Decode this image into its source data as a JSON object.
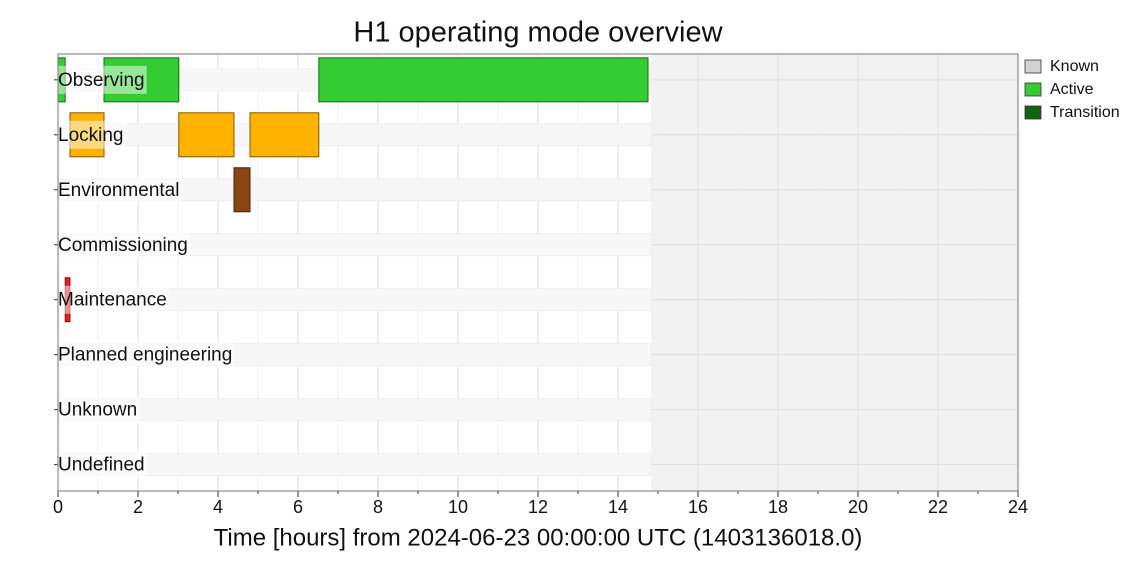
{
  "chart_data": {
    "type": "timeline",
    "title": "H1 operating mode overview",
    "xlabel": "Time [hours] from 2024-06-23 00:00:00 UTC (1403136018.0)",
    "xlim": [
      0,
      24
    ],
    "xticks": [
      0,
      2,
      4,
      6,
      8,
      10,
      12,
      14,
      16,
      18,
      20,
      22,
      24
    ],
    "grid": true,
    "known": [
      0,
      14.83
    ],
    "legend_position": "outside-upper-right",
    "legend": [
      {
        "name": "Known",
        "color": "#d3d3d3"
      },
      {
        "name": "Active",
        "color": "#33cc33"
      },
      {
        "name": "Transition",
        "color": "#116611"
      }
    ],
    "series": [
      {
        "name": "Observing",
        "color": "#33cc33",
        "edge": "#1a661a",
        "segments": [
          [
            0,
            0.18
          ],
          [
            1.15,
            3.02
          ],
          [
            6.52,
            14.75
          ]
        ]
      },
      {
        "name": "Locking",
        "color": "#ffb200",
        "edge": "#7f5900",
        "segments": [
          [
            0.3,
            1.15
          ],
          [
            3.02,
            4.4
          ],
          [
            4.8,
            6.52
          ]
        ]
      },
      {
        "name": "Environmental",
        "color": "#8b4513",
        "edge": "#45220a",
        "segments": [
          [
            4.4,
            4.8
          ]
        ]
      },
      {
        "name": "Commissioning",
        "color": "#800080",
        "edge": "#400040",
        "segments": []
      },
      {
        "name": "Maintenance",
        "color": "#dd2222",
        "edge": "#881111",
        "segments": [
          [
            0.18,
            0.3
          ]
        ]
      },
      {
        "name": "Planned engineering",
        "color": "#1f77b4",
        "edge": "#0f3b5a",
        "segments": []
      },
      {
        "name": "Unknown",
        "color": "#999999",
        "edge": "#555555",
        "segments": []
      },
      {
        "name": "Undefined",
        "color": "#cccccc",
        "edge": "#777777",
        "segments": []
      }
    ]
  }
}
